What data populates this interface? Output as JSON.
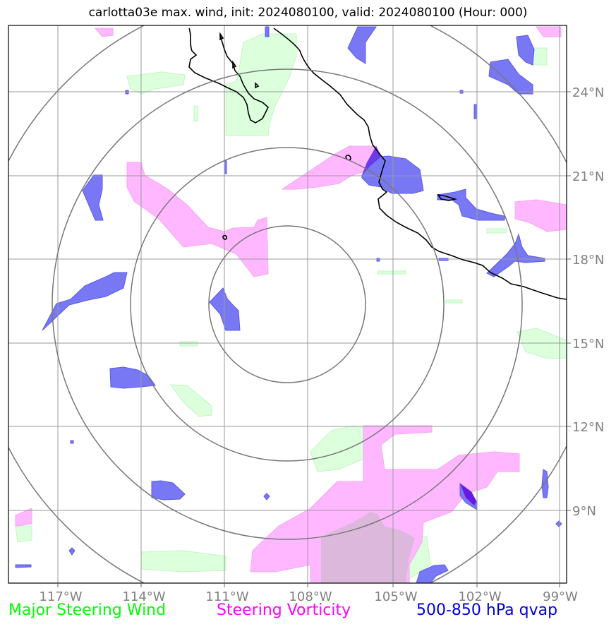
{
  "title": "carlotta03e max. wind, init: 2024080100, valid: 2024080100 (Hour: 000)",
  "legend": {
    "wind": "Major Steering Wind",
    "vorticity": "Steering Vorticity",
    "qvap": "500-850 hPa qvap"
  },
  "colors": {
    "wind": "#00ff00",
    "vorticity": "#ff00ff",
    "qvap": "#0000dd",
    "wind_fill": "#dcffdc",
    "vort_fill": "#ffb8ff",
    "qvap_fill": "#7878f5",
    "grid": "#999999",
    "rings": "#777777"
  },
  "map": {
    "lon_ticks": [
      "117°W",
      "114°W",
      "111°W",
      "108°W",
      "105°W",
      "102°W",
      "99°W"
    ],
    "lat_ticks": [
      "24°N",
      "21°N",
      "18°N",
      "15°N",
      "12°N",
      "9°N"
    ]
  }
}
